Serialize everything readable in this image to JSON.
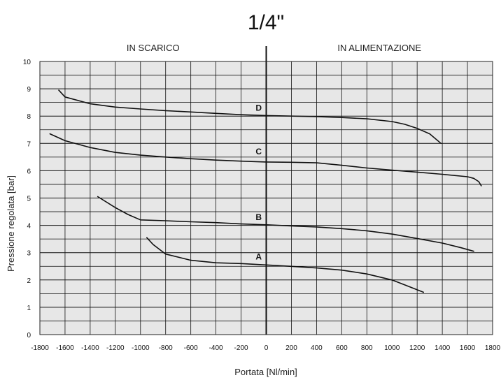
{
  "chart_data": {
    "type": "line",
    "title": "1/4\"",
    "xlabel": "Portata [Nl/min]",
    "ylabel": "Pressione regolata [bar]",
    "xlim": [
      -1800,
      1800
    ],
    "ylim": [
      0,
      10
    ],
    "grid": true,
    "x_ticks": [
      -1800,
      -1600,
      -1400,
      -1200,
      -1000,
      -800,
      -600,
      -400,
      -200,
      0,
      200,
      400,
      600,
      800,
      1000,
      1200,
      1400,
      1600,
      1800
    ],
    "x_tick_labels": [
      "-1800",
      "-1600",
      "-1400",
      "-1200",
      "-1000",
      "-800",
      "-600",
      "-400",
      "-200",
      "0",
      "200",
      "400",
      "600",
      "800",
      "1000",
      "1200",
      "1400",
      "1600",
      "1800"
    ],
    "y_ticks": [
      0,
      1,
      2,
      3,
      4,
      5,
      6,
      7,
      8,
      9,
      10
    ],
    "y_tick_labels": [
      "0",
      "1",
      "2",
      "3",
      "4",
      "5",
      "6",
      "7",
      "8",
      "9",
      "10"
    ],
    "regions": [
      {
        "label": "IN SCARICO",
        "side": "negative"
      },
      {
        "label": "IN ALIMENTAZIONE",
        "side": "positive"
      }
    ],
    "series": [
      {
        "name": "A",
        "x": [
          -950,
          -900,
          -800,
          -600,
          -400,
          -200,
          0,
          200,
          400,
          600,
          800,
          1000,
          1100,
          1250
        ],
        "y": [
          3.55,
          3.3,
          2.95,
          2.72,
          2.63,
          2.6,
          2.55,
          2.5,
          2.44,
          2.36,
          2.22,
          2.0,
          1.82,
          1.55
        ],
        "label_at": {
          "x": -60,
          "y": 2.75
        }
      },
      {
        "name": "B",
        "x": [
          -1340,
          -1200,
          -1100,
          -1000,
          -800,
          -600,
          -400,
          -200,
          0,
          200,
          400,
          600,
          800,
          1000,
          1200,
          1400,
          1550,
          1650
        ],
        "y": [
          5.05,
          4.65,
          4.4,
          4.2,
          4.17,
          4.13,
          4.1,
          4.05,
          4.02,
          3.98,
          3.94,
          3.88,
          3.8,
          3.68,
          3.52,
          3.35,
          3.18,
          3.05
        ],
        "label_at": {
          "x": -60,
          "y": 4.2
        }
      },
      {
        "name": "C",
        "x": [
          -1720,
          -1600,
          -1400,
          -1200,
          -1000,
          -800,
          -600,
          -400,
          -200,
          0,
          200,
          400,
          600,
          800,
          1000,
          1200,
          1400,
          1600,
          1650,
          1690,
          1710
        ],
        "y": [
          7.35,
          7.1,
          6.85,
          6.67,
          6.57,
          6.5,
          6.44,
          6.39,
          6.35,
          6.32,
          6.31,
          6.29,
          6.2,
          6.1,
          6.02,
          5.95,
          5.87,
          5.78,
          5.72,
          5.6,
          5.45
        ],
        "label_at": {
          "x": -60,
          "y": 6.6
        }
      },
      {
        "name": "D",
        "x": [
          -1650,
          -1600,
          -1400,
          -1200,
          -1000,
          -800,
          -600,
          -400,
          -200,
          0,
          200,
          400,
          600,
          800,
          1000,
          1100,
          1200,
          1300,
          1390
        ],
        "y": [
          8.95,
          8.7,
          8.45,
          8.33,
          8.26,
          8.2,
          8.15,
          8.1,
          8.05,
          8.02,
          8.0,
          7.98,
          7.95,
          7.9,
          7.8,
          7.7,
          7.55,
          7.35,
          7.0
        ],
        "label_at": {
          "x": -60,
          "y": 8.2
        }
      }
    ]
  }
}
